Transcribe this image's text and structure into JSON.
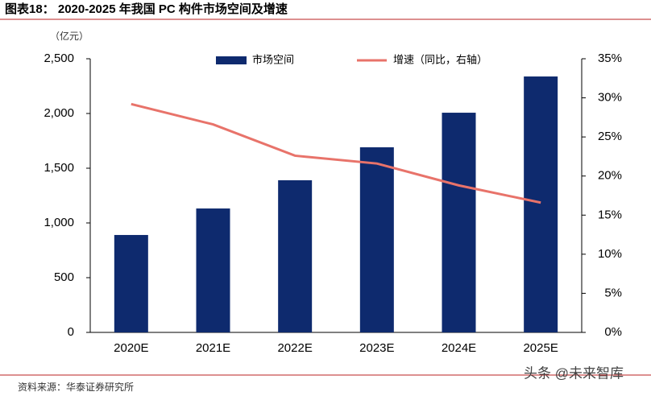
{
  "chart_data": {
    "type": "bar",
    "title": "图表18：  2020-2025 年我国 PC 构件市场空间及增速",
    "y_label": "（亿元）",
    "source": "资料来源：华泰证券研究所",
    "watermark": "头条 @未来智库",
    "categories": [
      "2020E",
      "2021E",
      "2022E",
      "2023E",
      "2024E",
      "2025E"
    ],
    "series": [
      {
        "name": "市场空间",
        "type": "bar",
        "color": "#0e2a6e",
        "values": [
          890,
          1132,
          1390,
          1691,
          2007,
          2338
        ]
      },
      {
        "name": "增速（同比，右轴）",
        "type": "line",
        "axis": "y2",
        "color": "#e8736a",
        "values": [
          29.2,
          26.6,
          22.6,
          21.6,
          18.8,
          16.6
        ]
      }
    ],
    "ylim": [
      0,
      2500
    ],
    "yticks": [
      0,
      500,
      {
        "value": 1000,
        "label": "1,000"
      },
      {
        "value": 1500,
        "label": "1,500"
      },
      {
        "value": 2000,
        "label": "2,000"
      },
      {
        "value": 2500,
        "label": "2,500"
      }
    ],
    "y2lim": [
      0,
      35
    ],
    "y2ticks": [
      {
        "value": 0,
        "label": "0%"
      },
      {
        "value": 5,
        "label": "5%"
      },
      {
        "value": 10,
        "label": "10%"
      },
      {
        "value": 15,
        "label": "15%"
      },
      {
        "value": 20,
        "label": "20%"
      },
      {
        "value": 25,
        "label": "25%"
      },
      {
        "value": 30,
        "label": "30%"
      },
      {
        "value": 35,
        "label": "35%"
      }
    ],
    "grid": false
  }
}
